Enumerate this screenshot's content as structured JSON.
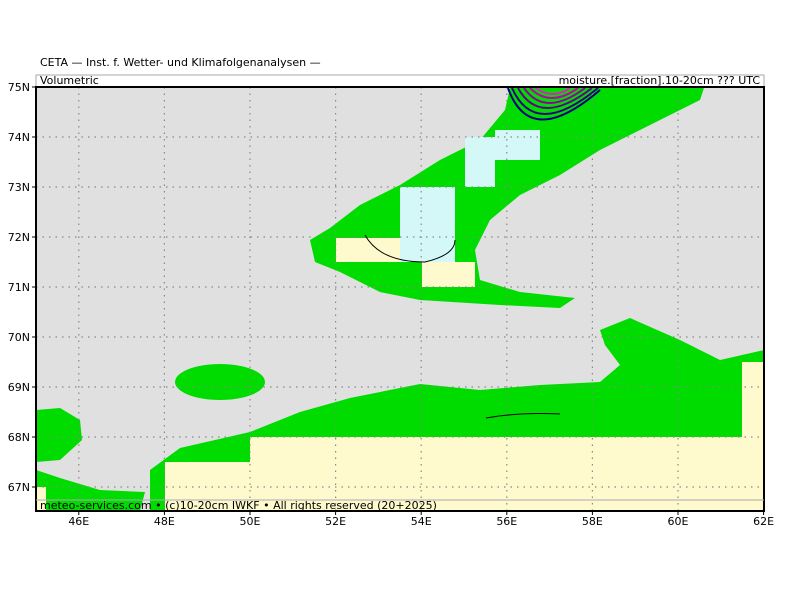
{
  "header": {
    "title": "CETA — Inst. f. Wetter- und Klimafolgenanalysen —",
    "left_label": "Volumetric",
    "right_label": "moisture.[fraction].10-20cm ??? UTC"
  },
  "axes": {
    "lat_labels": [
      "75N",
      "74N",
      "73N",
      "72N",
      "71N",
      "70N",
      "69N",
      "68N",
      "67N"
    ],
    "lon_labels": [
      "46E",
      "48E",
      "50E",
      "52E",
      "54E",
      "56E",
      "58E",
      "60E",
      "62E"
    ]
  },
  "footer": {
    "credit": "meteo-services.com • (c)10-20cm IWKF • All rights reserved (20+2025)"
  }
}
